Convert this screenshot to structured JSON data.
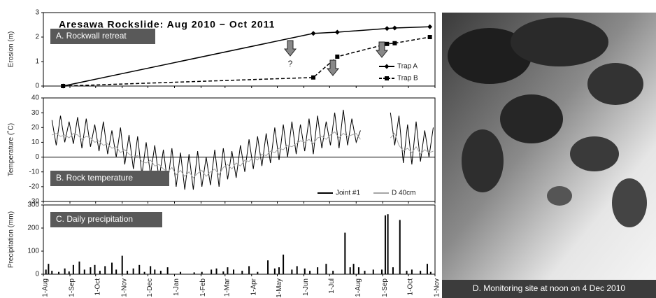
{
  "chart_data": [
    {
      "type": "line",
      "title": "Aresawa Rockslide: Aug 2010 − Oct 2011",
      "panel_label": "A. Rockwall retreat",
      "ylabel": "Erosion (m)",
      "xlim": [
        0,
        457
      ],
      "ylim": [
        0,
        3
      ],
      "yticks": [
        0,
        1,
        2,
        3
      ],
      "legend": "lower right",
      "annotations": [
        "?"
      ],
      "x": [
        23,
        315,
        343,
        401,
        410,
        451
      ],
      "series": [
        {
          "name": "Trap A",
          "color": "#000000",
          "marker": "diamond",
          "dash": false,
          "values": [
            0,
            2.15,
            2.2,
            2.35,
            2.37,
            2.42
          ]
        },
        {
          "name": "Trap B",
          "color": "#000000",
          "marker": "square",
          "dash": true,
          "values": [
            0,
            0.35,
            1.2,
            1.72,
            1.75,
            2.0
          ]
        }
      ]
    },
    {
      "type": "line",
      "panel_label": "B. Rock temperature",
      "ylabel": "Temperature (˚C)",
      "xlim": [
        0,
        457
      ],
      "ylim": [
        -30,
        40
      ],
      "yticks": [
        -30,
        -20,
        -10,
        0,
        10,
        20,
        30,
        40
      ],
      "legend": "lower right",
      "x": [
        10,
        15,
        20,
        25,
        30,
        35,
        40,
        45,
        50,
        55,
        60,
        65,
        70,
        75,
        80,
        85,
        90,
        95,
        100,
        105,
        110,
        115,
        120,
        125,
        130,
        135,
        140,
        145,
        150,
        155,
        160,
        165,
        170,
        175,
        180,
        185,
        190,
        195,
        200,
        205,
        210,
        215,
        220,
        225,
        230,
        235,
        240,
        245,
        250,
        255,
        260,
        265,
        270,
        275,
        280,
        285,
        290,
        295,
        300,
        305,
        310,
        315,
        320,
        325,
        330,
        335,
        340,
        345,
        350,
        355,
        360,
        365,
        370,
        375,
        380,
        385,
        390,
        395,
        400,
        405,
        410,
        415,
        420,
        425,
        430,
        435,
        440,
        445,
        450,
        455
      ],
      "series": [
        {
          "name": "Joint #1",
          "color": "#000000",
          "values": [
            25,
            8,
            28,
            10,
            24,
            9,
            27,
            6,
            26,
            7,
            22,
            4,
            24,
            2,
            18,
            0,
            20,
            -5,
            15,
            -8,
            14,
            -12,
            10,
            -12,
            8,
            -15,
            5,
            -18,
            6,
            -20,
            3,
            -22,
            2,
            -22,
            4,
            -20,
            0,
            -19,
            5,
            -20,
            6,
            -15,
            4,
            -14,
            8,
            -10,
            12,
            -8,
            14,
            -6,
            16,
            -4,
            20,
            -2,
            22,
            0,
            24,
            2,
            22,
            4,
            26,
            2,
            28,
            6,
            24,
            8,
            30,
            6,
            32,
            8,
            26,
            10,
            18,
            null,
            null,
            null,
            null,
            null,
            null,
            30,
            8,
            28,
            -4,
            22,
            -5,
            24,
            -3,
            18,
            0,
            20
          ]
        },
        {
          "name": "D 40cm",
          "color": "#a6a6a6",
          "values": [
            15,
            16,
            14,
            15,
            13,
            16,
            15,
            12,
            14,
            13,
            10,
            11,
            8,
            9,
            6,
            7,
            3,
            5,
            2,
            0,
            1,
            -3,
            -4,
            -2,
            -6,
            -5,
            -8,
            -10,
            -7,
            -12,
            -9,
            -13,
            -10,
            -14,
            -11,
            -9,
            -13,
            -10,
            -8,
            -12,
            -7,
            -5,
            -8,
            -4,
            -6,
            -2,
            -3,
            0,
            -2,
            2,
            1,
            4,
            3,
            6,
            5,
            8,
            7,
            9,
            11,
            10,
            12,
            9,
            13,
            14,
            12,
            15,
            17,
            13,
            16,
            14,
            15,
            16,
            12,
            null,
            null,
            null,
            null,
            null,
            null,
            13,
            16,
            8,
            4,
            6,
            3,
            7,
            2,
            5,
            3,
            4
          ]
        }
      ]
    },
    {
      "type": "bar",
      "panel_label": "C. Daily precipitation",
      "ylabel": "Precipitation (mm)",
      "color": "#000000",
      "xlim": [
        0,
        457
      ],
      "ylim": [
        0,
        300
      ],
      "yticks": [
        0,
        100,
        200,
        300
      ],
      "xticks": [
        {
          "value": 0,
          "label": "1-Aug"
        },
        {
          "value": 31,
          "label": "1-Sep"
        },
        {
          "value": 61,
          "label": "1-Oct"
        },
        {
          "value": 92,
          "label": "1-Nov"
        },
        {
          "value": 122,
          "label": "1-Dec"
        },
        {
          "value": 153,
          "label": "1-Jan"
        },
        {
          "value": 184,
          "label": "1-Feb"
        },
        {
          "value": 212,
          "label": "1-Mar"
        },
        {
          "value": 243,
          "label": "1-Apr"
        },
        {
          "value": 273,
          "label": "1-May"
        },
        {
          "value": 304,
          "label": "1-Jun"
        },
        {
          "value": 334,
          "label": "1-Jul"
        },
        {
          "value": 365,
          "label": "1-Aug"
        },
        {
          "value": 396,
          "label": "1-Sep"
        },
        {
          "value": 426,
          "label": "1-Oct"
        },
        {
          "value": 457,
          "label": "1-Nov"
        }
      ],
      "x": [
        3,
        6,
        10,
        18,
        25,
        30,
        35,
        42,
        48,
        55,
        60,
        66,
        72,
        80,
        85,
        92,
        98,
        105,
        112,
        118,
        125,
        130,
        137,
        145,
        160,
        176,
        185,
        196,
        202,
        210,
        215,
        222,
        232,
        240,
        250,
        262,
        270,
        275,
        280,
        290,
        296,
        305,
        311,
        320,
        330,
        338,
        352,
        358,
        362,
        368,
        375,
        385,
        395,
        399,
        402,
        408,
        416,
        424,
        430,
        440,
        448,
        452
      ],
      "values": [
        20,
        45,
        15,
        10,
        25,
        12,
        40,
        55,
        20,
        30,
        40,
        15,
        35,
        50,
        20,
        80,
        15,
        25,
        40,
        10,
        35,
        20,
        15,
        30,
        10,
        8,
        10,
        20,
        25,
        12,
        30,
        20,
        15,
        35,
        10,
        60,
        25,
        30,
        85,
        20,
        35,
        25,
        15,
        30,
        45,
        15,
        180,
        30,
        45,
        30,
        15,
        20,
        20,
        255,
        260,
        30,
        235,
        15,
        20,
        15,
        45,
        10
      ]
    }
  ],
  "photo": {
    "caption": "D. Monitoring site at noon on 4 Dec 2010"
  }
}
